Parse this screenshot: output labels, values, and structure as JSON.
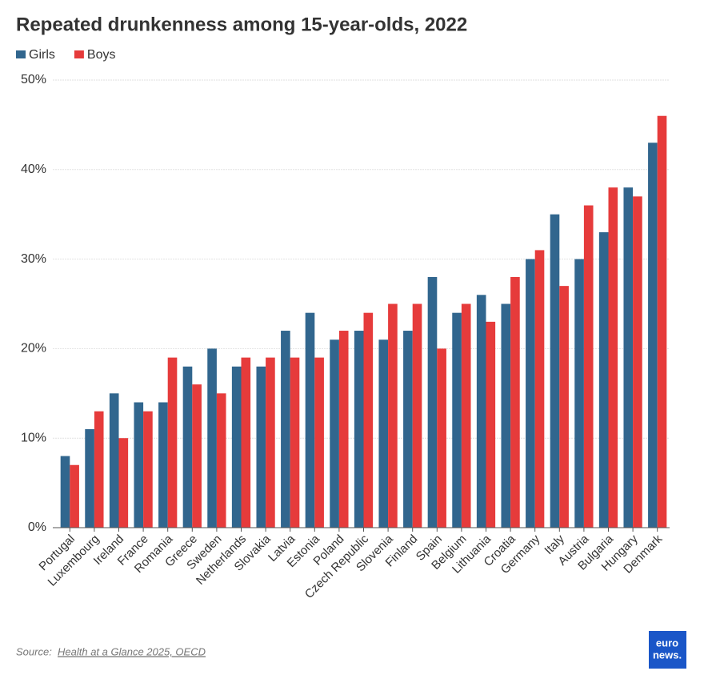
{
  "chart_data": {
    "type": "bar",
    "title": "Repeated drunkenness among 15-year-olds, 2022",
    "categories": [
      "Portugal",
      "Luxembourg",
      "Ireland",
      "France",
      "Romania",
      "Greece",
      "Sweden",
      "Netherlands",
      "Slovakia",
      "Latvia",
      "Estonia",
      "Poland",
      "Czech Republic",
      "Slovenia",
      "Finland",
      "Spain",
      "Belgium",
      "Lithuania",
      "Croatia",
      "Germany",
      "Italy",
      "Austria",
      "Bulgaria",
      "Hungary",
      "Denmark"
    ],
    "series": [
      {
        "name": "Girls",
        "color": "#31668e",
        "values": [
          8,
          11,
          15,
          14,
          14,
          18,
          20,
          18,
          18,
          22,
          24,
          21,
          22,
          21,
          22,
          28,
          24,
          26,
          25,
          30,
          35,
          30,
          33,
          38,
          43
        ]
      },
      {
        "name": "Boys",
        "color": "#e63b3b",
        "values": [
          7,
          13,
          10,
          13,
          19,
          16,
          15,
          19,
          19,
          19,
          19,
          22,
          24,
          25,
          25,
          20,
          25,
          23,
          28,
          31,
          27,
          36,
          38,
          37,
          46
        ]
      }
    ],
    "ylim": [
      0,
      50
    ],
    "yticks": [
      {
        "value": 0,
        "label": "0%"
      },
      {
        "value": 10,
        "label": "10%"
      },
      {
        "value": 20,
        "label": "20%"
      },
      {
        "value": 30,
        "label": "30%"
      },
      {
        "value": 40,
        "label": "40%"
      },
      {
        "value": 50,
        "label": "50%"
      }
    ],
    "grid": true,
    "source_prefix": "Source:",
    "source_link": "Health at a Glance 2025, OECD",
    "logo": [
      "euro",
      "news."
    ]
  }
}
